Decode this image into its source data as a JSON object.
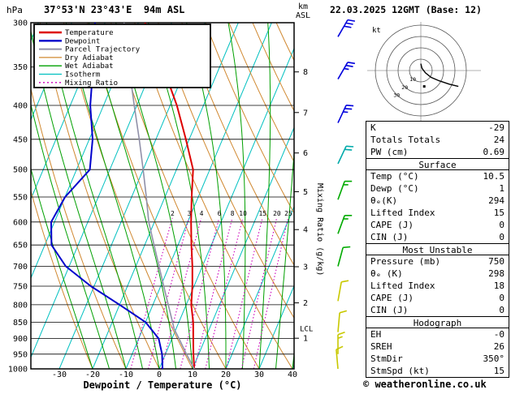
{
  "header": {
    "station": "37°53'N 23°43'E  94m ASL",
    "datetime": "22.03.2025 12GMT (Base: 12)"
  },
  "labels": {
    "hpa": "hPa",
    "km": "km",
    "asl": "ASL",
    "lcl": "LCL",
    "kt": "kt"
  },
  "legend": {
    "items": [
      {
        "label": "Temperature",
        "color": "#dd0000",
        "width": 2.4,
        "dash": ""
      },
      {
        "label": "Dewpoint",
        "color": "#0000cc",
        "width": 2.4,
        "dash": ""
      },
      {
        "label": "Parcel Trajectory",
        "color": "#9090a8",
        "width": 2,
        "dash": ""
      },
      {
        "label": "Dry Adiabat",
        "color": "#d08830",
        "width": 1.3,
        "dash": ""
      },
      {
        "label": "Wet Adiabat",
        "color": "#00a000",
        "width": 1.3,
        "dash": ""
      },
      {
        "label": "Isotherm",
        "color": "#00c0c0",
        "width": 1.3,
        "dash": ""
      },
      {
        "label": "Mixing Ratio",
        "color": "#cc00bb",
        "width": 1.3,
        "dash": "2,3"
      }
    ]
  },
  "chart_data": {
    "type": "line",
    "title": "Skew-T log-P sounding 37°53'N 23°43'E 94m ASL 22.03.2025 12GMT",
    "x_axis": {
      "label": "Dewpoint / Temperature (°C)",
      "ticks": [
        -30,
        -20,
        -10,
        0,
        10,
        20,
        30,
        40
      ]
    },
    "y_axis": {
      "unit": "hPa",
      "scale": "log",
      "ticks": [
        300,
        350,
        400,
        450,
        500,
        550,
        600,
        650,
        700,
        750,
        800,
        850,
        900,
        950,
        1000
      ]
    },
    "altitude_axis": {
      "unit": "km ASL",
      "ticks": [
        {
          "km": 1,
          "p": 899
        },
        {
          "km": 2,
          "p": 795
        },
        {
          "km": 3,
          "p": 701
        },
        {
          "km": 4,
          "p": 616
        },
        {
          "km": 5,
          "p": 540
        },
        {
          "km": 6,
          "p": 472
        },
        {
          "km": 7,
          "p": 410
        },
        {
          "km": 8,
          "p": 356
        }
      ],
      "lcl_pressure": 870
    },
    "mixing_ratio_axis_label": "Mixing Ratio (g/kg)",
    "mixing_ratio_values": [
      2,
      3,
      4,
      6,
      8,
      10,
      15,
      20,
      25
    ],
    "series": [
      {
        "name": "Temperature",
        "color": "#dd0000",
        "width": 2,
        "points_p_t": [
          [
            1000,
            10.5
          ],
          [
            950,
            8.4
          ],
          [
            900,
            6.4
          ],
          [
            850,
            4.3
          ],
          [
            800,
            1.5
          ],
          [
            750,
            -0.5
          ],
          [
            700,
            -3
          ],
          [
            650,
            -6
          ],
          [
            600,
            -9
          ],
          [
            550,
            -12
          ],
          [
            500,
            -15
          ],
          [
            450,
            -21
          ],
          [
            400,
            -28
          ],
          [
            350,
            -37
          ],
          [
            300,
            -48
          ]
        ]
      },
      {
        "name": "Dewpoint",
        "color": "#0000cc",
        "width": 2,
        "points_p_t": [
          [
            1000,
            1
          ],
          [
            950,
            -1
          ],
          [
            900,
            -4
          ],
          [
            850,
            -10
          ],
          [
            800,
            -20
          ],
          [
            750,
            -31
          ],
          [
            700,
            -41
          ],
          [
            650,
            -48
          ],
          [
            600,
            -51
          ],
          [
            550,
            -50
          ],
          [
            500,
            -46
          ],
          [
            450,
            -49
          ],
          [
            400,
            -54
          ],
          [
            350,
            -58
          ],
          [
            300,
            -63
          ]
        ]
      },
      {
        "name": "Parcel Trajectory",
        "color": "#9090a8",
        "width": 1.6,
        "points_p_t": [
          [
            1000,
            10.5
          ],
          [
            950,
            6.3
          ],
          [
            900,
            2.1
          ],
          [
            870,
            -0.6
          ],
          [
            850,
            -1.9
          ],
          [
            800,
            -5.4
          ],
          [
            750,
            -9.1
          ],
          [
            700,
            -13
          ],
          [
            650,
            -17.2
          ],
          [
            600,
            -21.7
          ],
          [
            550,
            -25.6
          ],
          [
            500,
            -30
          ],
          [
            450,
            -35
          ],
          [
            400,
            -40.8
          ],
          [
            350,
            -47.2
          ],
          [
            300,
            -54.3
          ]
        ]
      }
    ],
    "wind_barbs": [
      {
        "p": 315,
        "speed_kt": 30,
        "dir_deg": 30,
        "color": "#0000dd"
      },
      {
        "p": 365,
        "speed_kt": 25,
        "dir_deg": 30,
        "color": "#0000dd"
      },
      {
        "p": 425,
        "speed_kt": 25,
        "dir_deg": 25,
        "color": "#0000dd"
      },
      {
        "p": 490,
        "speed_kt": 20,
        "dir_deg": 25,
        "color": "#00aaaa"
      },
      {
        "p": 555,
        "speed_kt": 15,
        "dir_deg": 20,
        "color": "#00aa00"
      },
      {
        "p": 625,
        "speed_kt": 15,
        "dir_deg": 20,
        "color": "#00aa00"
      },
      {
        "p": 700,
        "speed_kt": 10,
        "dir_deg": 15,
        "color": "#00aa00"
      },
      {
        "p": 790,
        "speed_kt": 10,
        "dir_deg": 10,
        "color": "#c8c800"
      },
      {
        "p": 880,
        "speed_kt": 10,
        "dir_deg": 5,
        "color": "#c8c800"
      },
      {
        "p": 950,
        "speed_kt": 15,
        "dir_deg": 0,
        "color": "#c8c800"
      },
      {
        "p": 1000,
        "speed_kt": 10,
        "dir_deg": 355,
        "color": "#c8c800"
      }
    ],
    "hodograph": {
      "unit": "kt",
      "rings_kt": [
        10,
        20,
        30,
        40
      ],
      "ring_labels": [
        "10",
        "20",
        "30"
      ],
      "trace_uv_kt": [
        [
          0,
          6
        ],
        [
          1,
          2
        ],
        [
          4,
          -2
        ],
        [
          9,
          -6
        ],
        [
          16,
          -9
        ],
        [
          25,
          -12
        ],
        [
          33,
          -14
        ]
      ],
      "storm_motion_uv_kt": [
        3,
        -14
      ]
    }
  },
  "stats": {
    "top_rows": [
      [
        "K",
        "-29"
      ],
      [
        "Totals Totals",
        "24"
      ],
      [
        "PW (cm)",
        "0.69"
      ]
    ],
    "sections": [
      {
        "title": "Surface",
        "rows": [
          [
            "Temp (°C)",
            "10.5"
          ],
          [
            "Dewp (°C)",
            "1"
          ],
          [
            "θₑ(K)",
            "294"
          ],
          [
            "Lifted Index",
            "15"
          ],
          [
            "CAPE (J)",
            "0"
          ],
          [
            "CIN (J)",
            "0"
          ]
        ]
      },
      {
        "title": "Most Unstable",
        "rows": [
          [
            "Pressure (mb)",
            "750"
          ],
          [
            "θₑ (K)",
            "298"
          ],
          [
            "Lifted Index",
            "18"
          ],
          [
            "CAPE (J)",
            "0"
          ],
          [
            "CIN (J)",
            "0"
          ]
        ]
      },
      {
        "title": "Hodograph",
        "rows": [
          [
            "EH",
            "-0"
          ],
          [
            "SREH",
            "26"
          ],
          [
            "StmDir",
            "350°"
          ],
          [
            "StmSpd (kt)",
            "15"
          ]
        ]
      }
    ]
  },
  "footer": {
    "copyright": "© weatheronline.co.uk"
  }
}
